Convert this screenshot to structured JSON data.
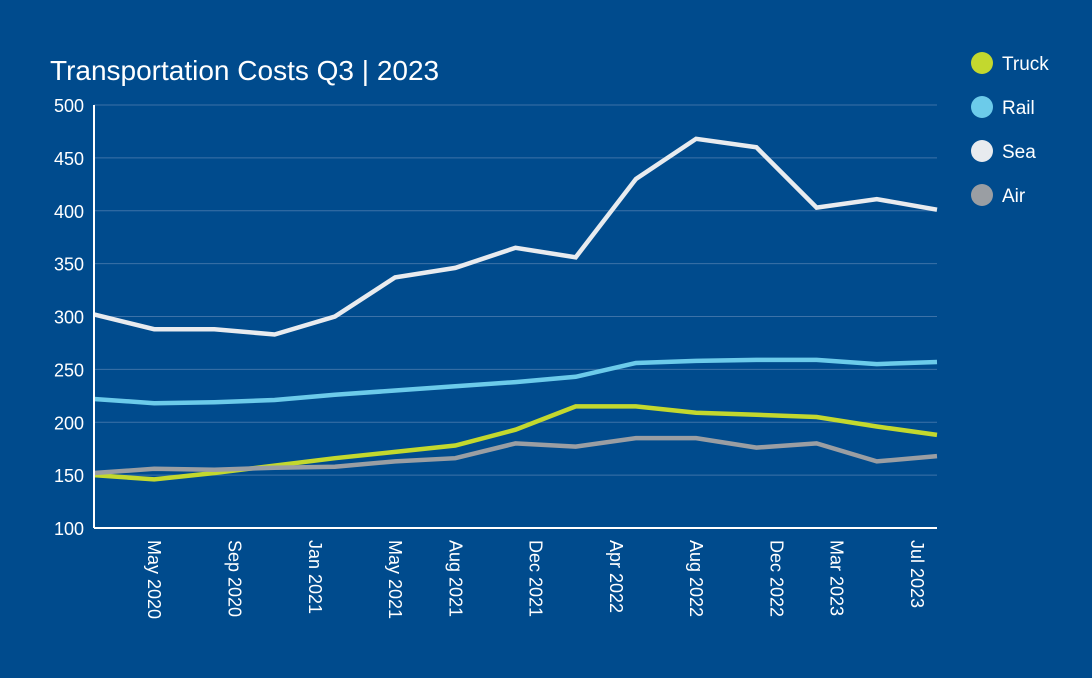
{
  "colors": {
    "background": "#004b8d",
    "grid": "#3c72a8",
    "axis": "#ffffff",
    "Truck": "#c3d82e",
    "Rail": "#6ccbea",
    "Sea": "#e8ebef",
    "Air": "#9a9ea3"
  },
  "chart_data": {
    "type": "line",
    "title": "Transportation Costs Q3 | 2023",
    "xlabel": "",
    "ylabel": "",
    "ylim": [
      100,
      500
    ],
    "yticks": [
      100,
      150,
      200,
      250,
      300,
      350,
      400,
      450,
      500
    ],
    "grid": true,
    "legend_position": "right",
    "x_tick_labels": [
      "May 2020",
      "Sep 2020",
      "Jan 2021",
      "May 2021",
      "Aug 2021",
      "Dec 2021",
      "Apr 2022",
      "Aug 2022",
      "Dec 2022",
      "Mar 2023",
      "Jul 2023"
    ],
    "x": [
      "2020-02",
      "2020-05",
      "2020-08",
      "2020-11",
      "2021-02",
      "2021-05",
      "2021-08",
      "2021-11",
      "2022-02",
      "2022-05",
      "2022-08",
      "2022-11",
      "2023-02",
      "2023-05",
      "2023-08"
    ],
    "series": [
      {
        "name": "Truck",
        "values": [
          150,
          146,
          152,
          159,
          166,
          172,
          178,
          193,
          215,
          215,
          209,
          207,
          205,
          196,
          188
        ]
      },
      {
        "name": "Rail",
        "values": [
          222,
          218,
          219,
          221,
          226,
          230,
          234,
          238,
          243,
          256,
          258,
          259,
          259,
          255,
          257
        ]
      },
      {
        "name": "Sea",
        "values": [
          302,
          288,
          288,
          283,
          300,
          337,
          346,
          365,
          356,
          430,
          468,
          460,
          403,
          411,
          401
        ]
      },
      {
        "name": "Air",
        "values": [
          152,
          156,
          155,
          157,
          158,
          163,
          166,
          180,
          177,
          185,
          185,
          176,
          180,
          163,
          168
        ]
      }
    ]
  }
}
